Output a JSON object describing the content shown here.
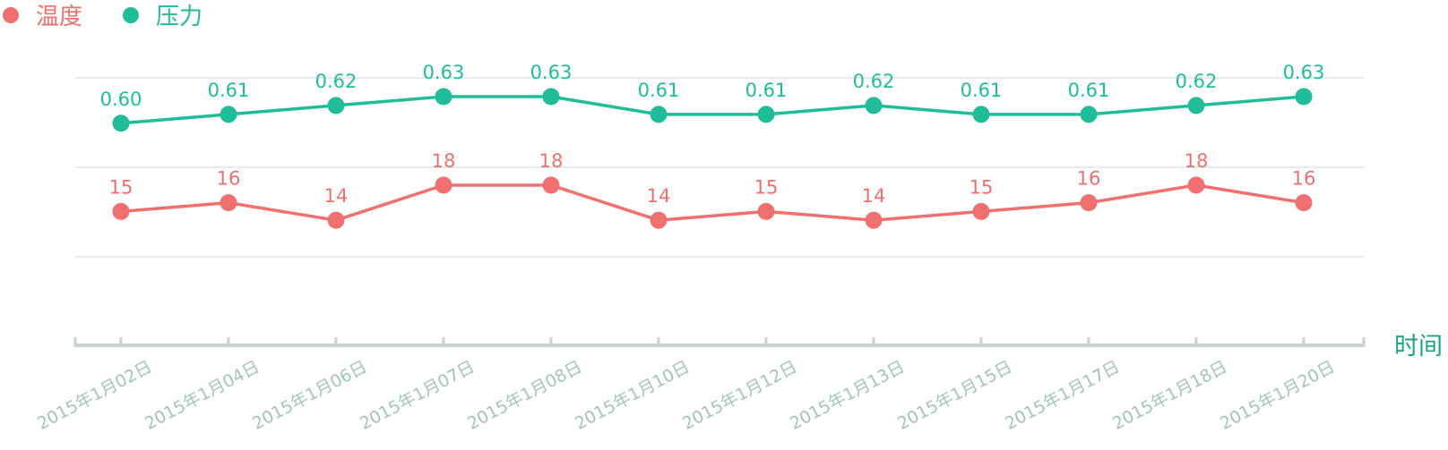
{
  "chart_data": {
    "type": "line",
    "x": [
      "2015年1月02日",
      "2015年1月04日",
      "2015年1月06日",
      "2015年1月07日",
      "2015年1月08日",
      "2015年1月10日",
      "2015年1月12日",
      "2015年1月13日",
      "2015年1月15日",
      "2015年1月17日",
      "2015年1月18日",
      "2015年1月20日"
    ],
    "series": [
      {
        "name": "温度",
        "color": "#f07070",
        "values": [
          15,
          16,
          14,
          18,
          18,
          14,
          15,
          14,
          15,
          16,
          18,
          16
        ]
      },
      {
        "name": "压力",
        "color": "#20bd9b",
        "values": [
          0.6,
          0.61,
          0.62,
          0.63,
          0.63,
          0.61,
          0.61,
          0.62,
          0.61,
          0.61,
          0.62,
          0.63
        ],
        "label_decimals": 2
      }
    ],
    "xlabel": "时间",
    "ylabel": "",
    "legend_position": "top-left",
    "grid": true,
    "axis_color": "#c5d3cf",
    "tick_label_color": "#a3c4bb",
    "axis_title_color": "#1aa386"
  }
}
